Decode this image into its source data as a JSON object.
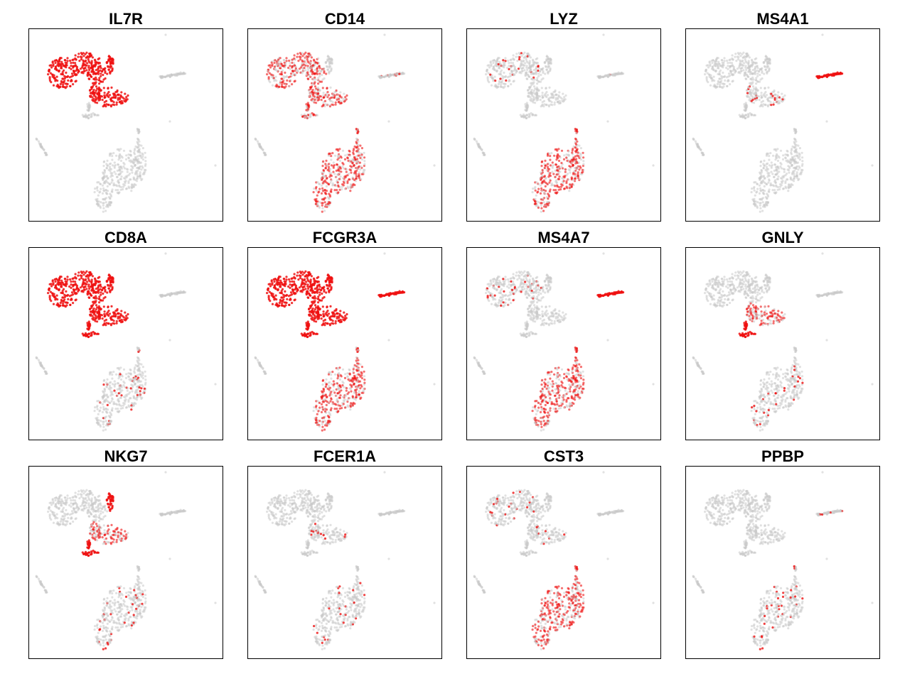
{
  "chart_data": [
    {
      "type": "scatter",
      "title": "IL7R",
      "highlight": [
        "tcell_main",
        "tcell_mid",
        "tcell_hook"
      ],
      "sparse": []
    },
    {
      "type": "scatter",
      "title": "CD14",
      "highlight": [],
      "medium": [
        "tcell_main",
        "tcell_mid",
        "tcell_low",
        "mono"
      ],
      "sparse": [
        "bcell"
      ]
    },
    {
      "type": "scatter",
      "title": "LYZ",
      "highlight": [],
      "medium": [
        "mono"
      ],
      "sparse": [
        "tcell_main",
        "bcell"
      ]
    },
    {
      "type": "scatter",
      "title": "MS4A1",
      "highlight": [
        "bcell"
      ],
      "sparse": [
        "tcell_mid"
      ]
    },
    {
      "type": "scatter",
      "title": "CD8A",
      "highlight": [
        "tcell_main",
        "tcell_mid",
        "tcell_hook",
        "tcell_low"
      ],
      "sparse": [
        "mono"
      ]
    },
    {
      "type": "scatter",
      "title": "FCGR3A",
      "highlight": [
        "tcell_main",
        "tcell_mid",
        "tcell_hook",
        "tcell_low",
        "bcell"
      ],
      "medium": [
        "mono"
      ],
      "sparse": []
    },
    {
      "type": "scatter",
      "title": "MS4A7",
      "highlight": [
        "bcell"
      ],
      "medium": [
        "mono"
      ],
      "sparse": [
        "tcell_main"
      ]
    },
    {
      "type": "scatter",
      "title": "GNLY",
      "highlight": [
        "tcell_low"
      ],
      "medium": [
        "tcell_mid"
      ],
      "sparse": [
        "mono"
      ]
    },
    {
      "type": "scatter",
      "title": "NKG7",
      "highlight": [
        "tcell_low",
        "tcell_hook"
      ],
      "medium": [
        "tcell_mid"
      ],
      "sparse": [
        "mono"
      ]
    },
    {
      "type": "scatter",
      "title": "FCER1A",
      "highlight": [],
      "sparse": [
        "mono",
        "tcell_mid"
      ]
    },
    {
      "type": "scatter",
      "title": "CST3",
      "highlight": [],
      "medium": [
        "mono"
      ],
      "sparse": [
        "tcell_main",
        "tcell_mid"
      ]
    },
    {
      "type": "scatter",
      "title": "PPBP",
      "highlight": [],
      "sparse": [
        "bcell",
        "mono"
      ]
    }
  ],
  "colors": {
    "background_cell": "#c8c8c8",
    "expressing_cell": "#ee1111"
  }
}
